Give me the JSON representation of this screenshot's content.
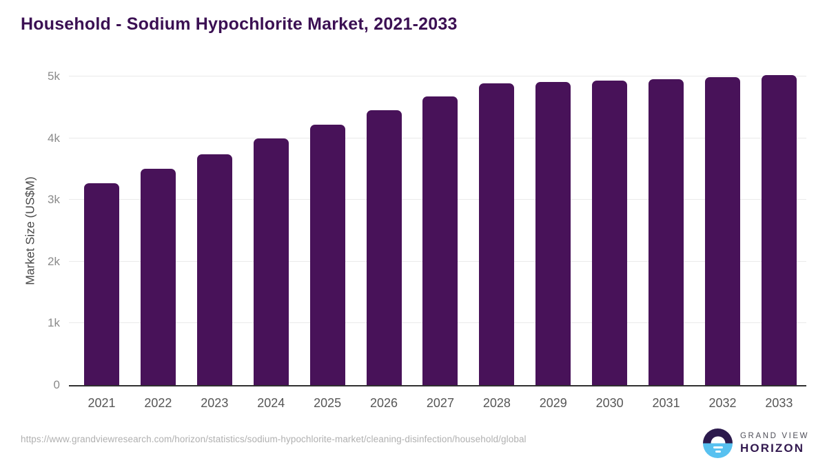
{
  "title": "Household - Sodium Hypochlorite Market, 2021-2033",
  "chart_data": {
    "type": "bar",
    "title": "Household - Sodium Hypochlorite Market, 2021-2033",
    "categories": [
      "2021",
      "2022",
      "2023",
      "2024",
      "2025",
      "2026",
      "2027",
      "2028",
      "2029",
      "2030",
      "2031",
      "2032",
      "2033"
    ],
    "values": [
      3270,
      3500,
      3740,
      4000,
      4220,
      4450,
      4680,
      4890,
      4910,
      4930,
      4960,
      4990,
      5020
    ],
    "xlabel": "",
    "ylabel": "Market Size (US$M)",
    "ylim": [
      0,
      5000
    ],
    "yticks": [
      {
        "label": "0",
        "value": 0
      },
      {
        "label": "1k",
        "value": 1000
      },
      {
        "label": "2k",
        "value": 2000
      },
      {
        "label": "3k",
        "value": 3000
      },
      {
        "label": "4k",
        "value": 4000
      },
      {
        "label": "5k",
        "value": 5000
      }
    ],
    "grid": true,
    "legend": false
  },
  "footer": {
    "source_url": "https://www.grandviewresearch.com/horizon/statistics/sodium-hypochlorite-market/cleaning-disinfection/household/global",
    "brand_line1": "GRAND VIEW",
    "brand_line2": "HORIZON"
  },
  "colors": {
    "bar": "#481259",
    "title": "#3b1053",
    "x_labels": "#565656",
    "y_labels": "#8a8a8a",
    "y_axis_title": "#4a4a4a",
    "gridline": "#eaeaea",
    "axis_line": "#2f2f2f",
    "url_text": "#b0b0b0",
    "logo_navy": "#2c1a4d",
    "logo_blue": "#58c1f0",
    "brand_top_text": "#4d4d57",
    "brand_bottom_text": "#32194f"
  }
}
